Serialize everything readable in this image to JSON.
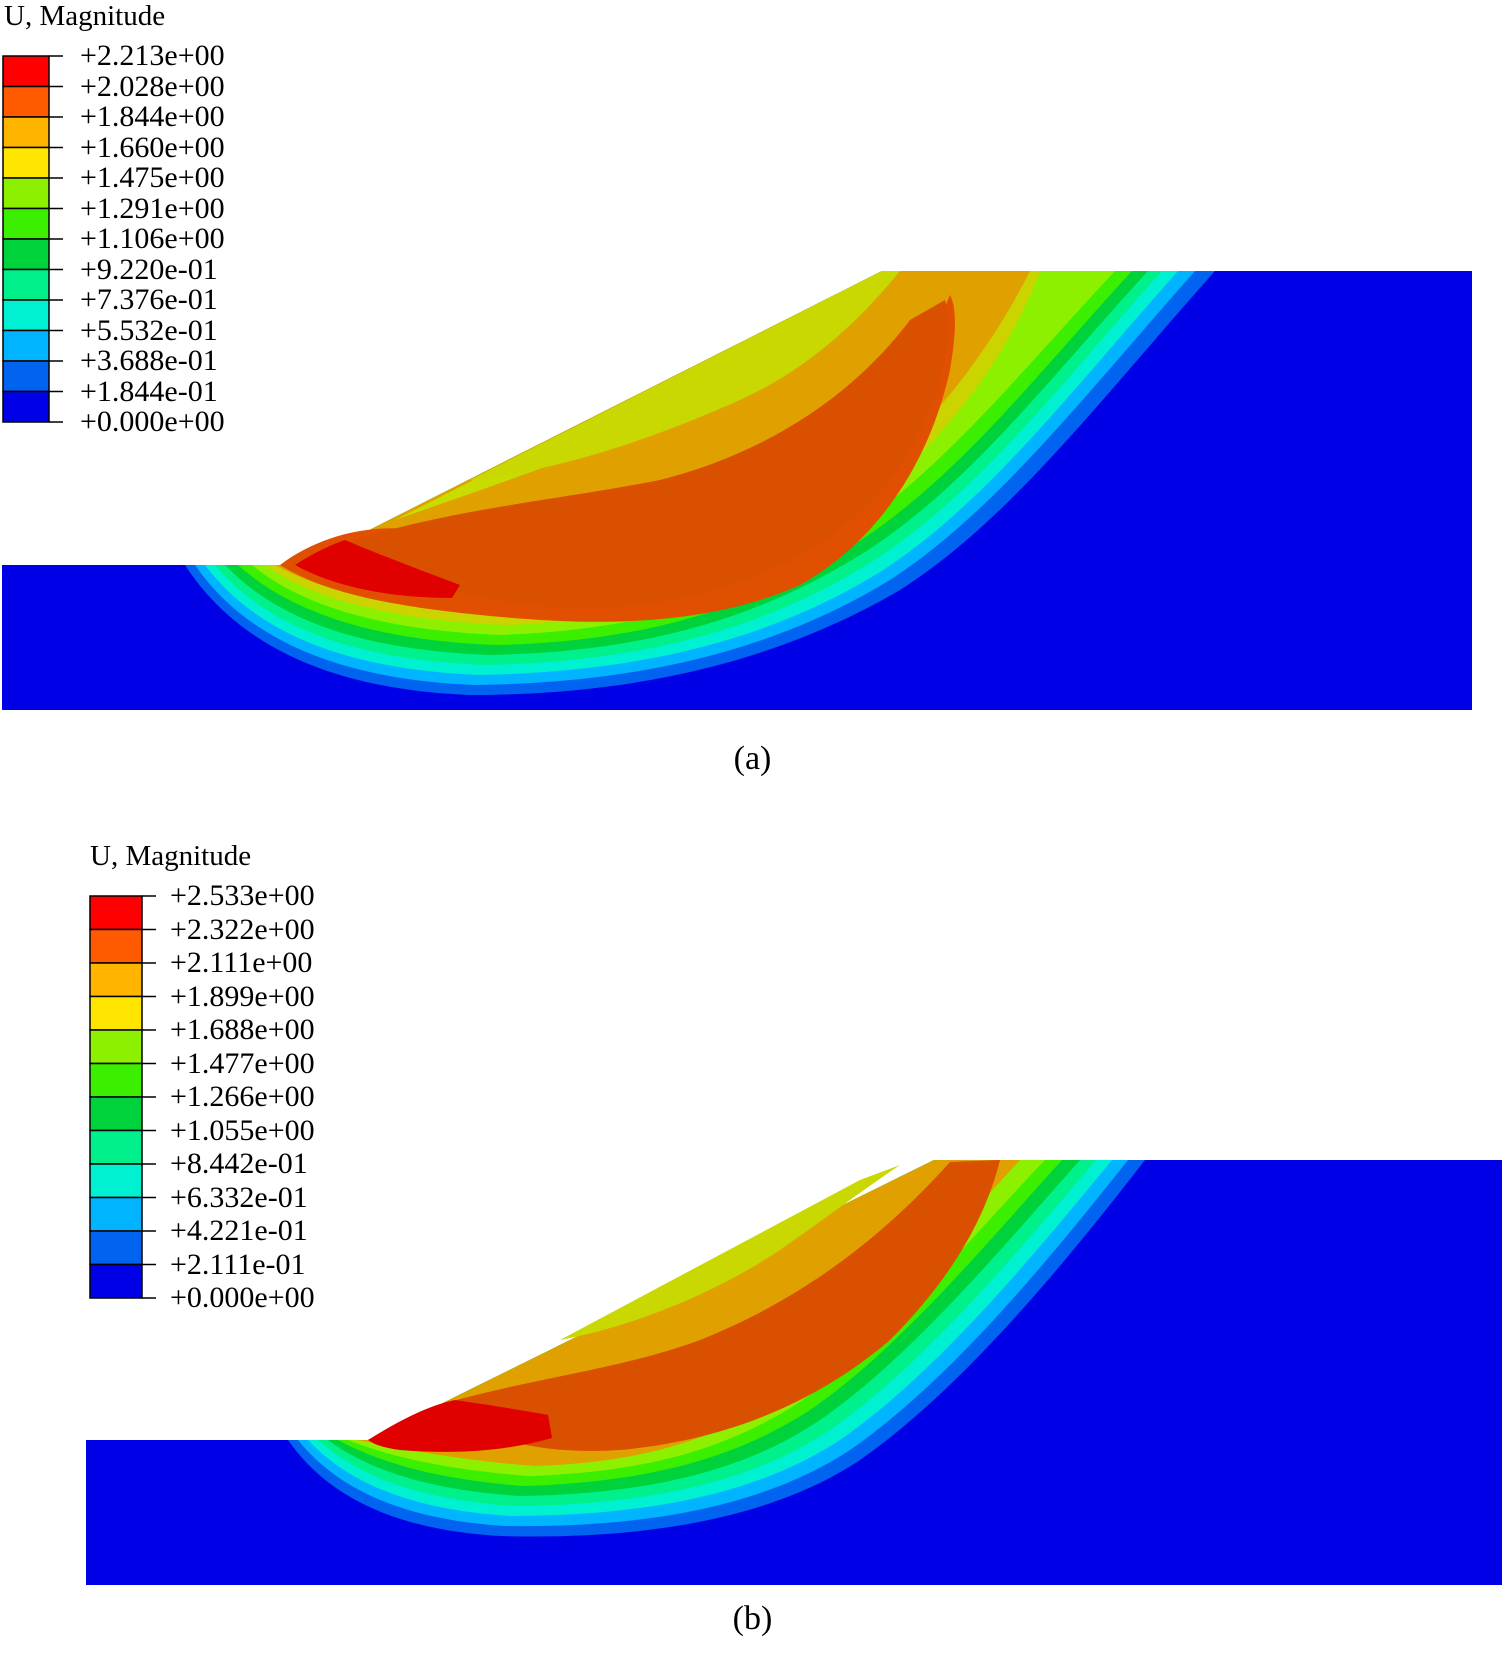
{
  "panels": [
    {
      "id": "a",
      "caption": "(a)",
      "legend_title": "U, Magnitude",
      "legend_values": [
        "+2.213e+00",
        "+2.028e+00",
        "+1.844e+00",
        "+1.660e+00",
        "+1.475e+00",
        "+1.291e+00",
        "+1.106e+00",
        "+9.220e-01",
        "+7.376e-01",
        "+5.532e-01",
        "+3.688e-01",
        "+1.844e-01",
        "+0.000e+00"
      ]
    },
    {
      "id": "b",
      "caption": "(b)",
      "legend_title": "U, Magnitude",
      "legend_values": [
        "+2.533e+00",
        "+2.322e+00",
        "+2.111e+00",
        "+1.899e+00",
        "+1.688e+00",
        "+1.477e+00",
        "+1.266e+00",
        "+1.055e+00",
        "+8.442e-01",
        "+6.332e-01",
        "+4.221e-01",
        "+2.111e-01",
        "+0.000e+00"
      ]
    }
  ],
  "colors": {
    "band_colors_top_to_bottom": [
      "#ff0000",
      "#ff5a00",
      "#ffb400",
      "#ffe600",
      "#8cf000",
      "#3cee00",
      "#00d23c",
      "#00f08c",
      "#00f0d2",
      "#00b4ff",
      "#0064f0",
      "#0000e6"
    ],
    "background": "#ffffff"
  }
}
